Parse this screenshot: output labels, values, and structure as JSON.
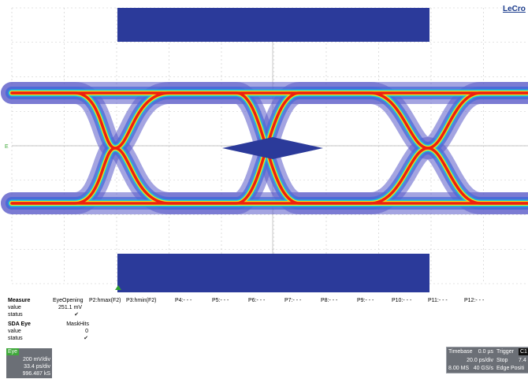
{
  "brand": "LeCro",
  "channel_marker": "E",
  "measure": {
    "header": "Measure",
    "row_labels": [
      "value",
      "status"
    ],
    "columns": [
      {
        "name": "EyeOpening",
        "value": "251.1 mV",
        "status": "✔"
      },
      {
        "name": "P2:hmax(F2)"
      },
      {
        "name": "P3:hmin(F2)"
      },
      {
        "name": "P4:- - -"
      },
      {
        "name": "P5:- - -"
      },
      {
        "name": "P6:- - -"
      },
      {
        "name": "P7:- - -"
      },
      {
        "name": "P8:- - -"
      },
      {
        "name": "P9:- - -"
      },
      {
        "name": "P10:- - -"
      },
      {
        "name": "P11:- - -"
      },
      {
        "name": "P12:- - -"
      }
    ]
  },
  "sda_eye": {
    "header": "SDA Eye",
    "row_labels": [
      "value",
      "status"
    ],
    "column": "MaskHits",
    "value": "0",
    "status": "✔"
  },
  "eye_panel": {
    "tag": "Eye",
    "vdiv": "200 mV/div",
    "hdiv": "33.4 ps/div",
    "count": "996.487 kS"
  },
  "timebase": {
    "label": "Timebase",
    "offset": "0.0 µs",
    "rate": "20.0 ps/div",
    "samples": "8.00 MS",
    "srate": "40 GS/s"
  },
  "trigger": {
    "label": "Trigger",
    "badge": "C1",
    "mode": "Stop",
    "level": "7.4",
    "type": "Edge",
    "slope": "Positi"
  },
  "colors": {
    "grid_bg": "#ffffff",
    "grid_line": "#c8c8c8",
    "mask": "#2b3a9a",
    "eye_outer": "#5a5ac8",
    "eye_mid": "#18c8d8",
    "eye_inner": "#e8e820",
    "eye_core": "#ee2010"
  }
}
